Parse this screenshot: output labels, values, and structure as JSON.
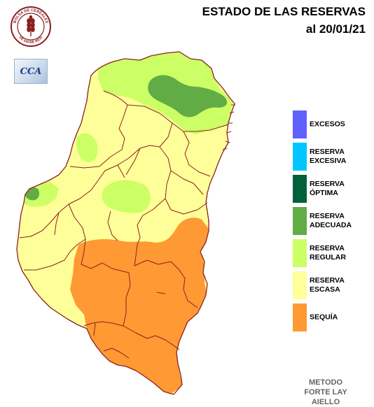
{
  "header": {
    "title": "ESTADO DE LAS RESERVAS",
    "date": "al 20/01/21"
  },
  "logos": {
    "bolsa_text": "BOLSA DE CEREALES DE ENTRE RIOS",
    "cca_text": "CCA"
  },
  "legend": [
    {
      "label": "EXCESOS",
      "color": "#6060ff"
    },
    {
      "label": "RESERVA\nEXCESIVA",
      "color": "#00c6ff"
    },
    {
      "label": "RESERVA\nÓPTIMA",
      "color": "#00603a"
    },
    {
      "label": "RESERVA\nADECUADA",
      "color": "#62ac46"
    },
    {
      "label": "RESERVA\nREGULAR",
      "color": "#ccff66"
    },
    {
      "label": "RESERVA\nESCASA",
      "color": "#ffff99"
    },
    {
      "label": "SEQUÍA",
      "color": "#ff9933"
    }
  ],
  "method": "METODO\nFORTE LAY\nAIELLO",
  "colors": {
    "border": "#8b2020",
    "escasa": "#ffff99",
    "regular": "#ccff66",
    "adecuada": "#62ac46",
    "sequia": "#ff9933"
  }
}
